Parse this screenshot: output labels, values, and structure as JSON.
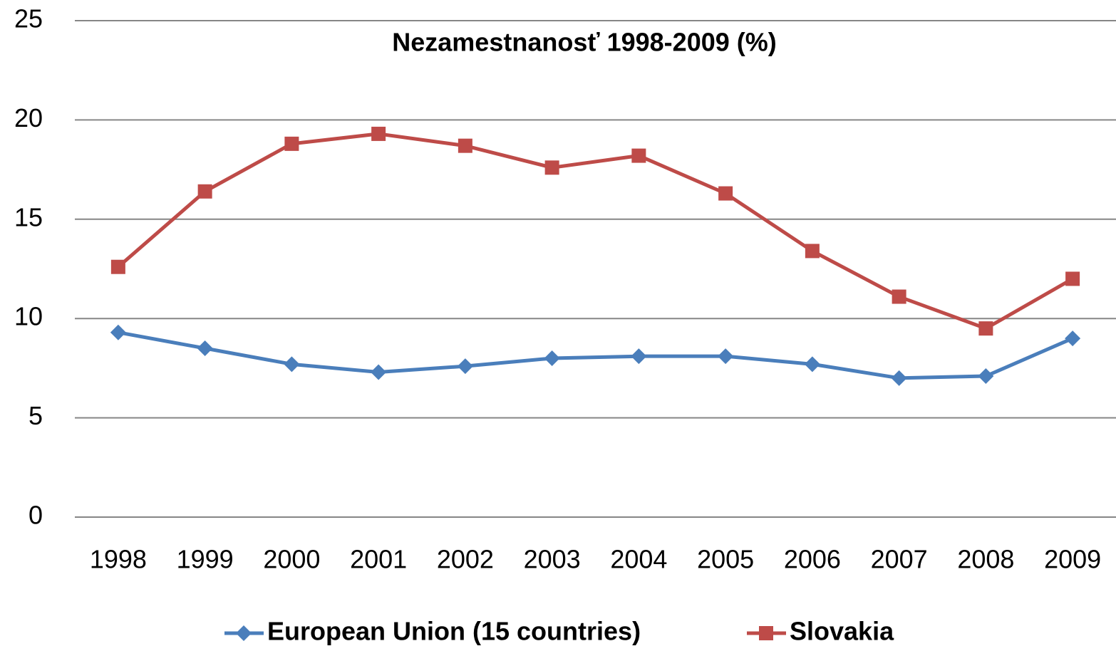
{
  "chart_data": {
    "type": "line",
    "title": "Nezamestnanosť 1998-2009 (%)",
    "categories": [
      "1998",
      "1999",
      "2000",
      "2001",
      "2002",
      "2003",
      "2004",
      "2005",
      "2006",
      "2007",
      "2008",
      "2009"
    ],
    "series": [
      {
        "name": "European Union (15 countries)",
        "color": "#4a7ebb",
        "marker": "diamond",
        "values": [
          9.3,
          8.5,
          7.7,
          7.3,
          7.6,
          8.0,
          8.1,
          8.1,
          7.7,
          7.0,
          7.1,
          9.0
        ]
      },
      {
        "name": "Slovakia",
        "color": "#be4b48",
        "marker": "square",
        "values": [
          12.6,
          16.4,
          18.8,
          19.3,
          18.7,
          17.6,
          18.2,
          16.3,
          13.4,
          11.1,
          9.5,
          12.0
        ]
      }
    ],
    "ylim": [
      0,
      25
    ],
    "yticks": [
      0,
      5,
      10,
      15,
      20,
      25
    ],
    "grid": true,
    "legend": "bottom"
  }
}
